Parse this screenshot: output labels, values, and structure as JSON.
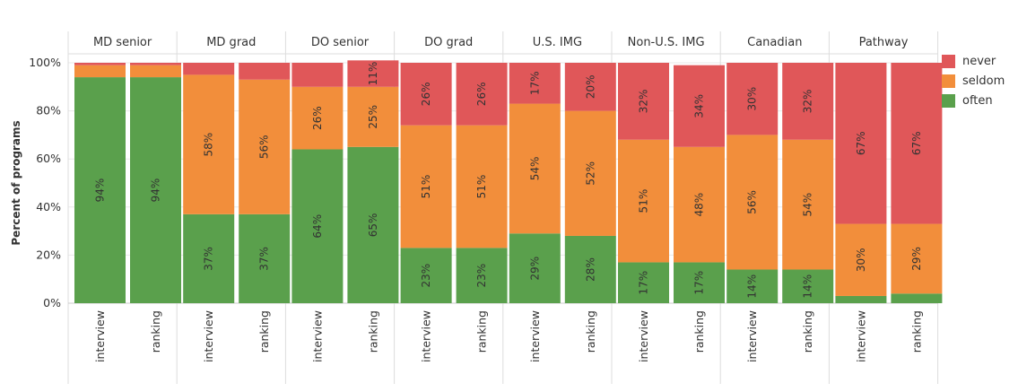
{
  "chart_data": {
    "type": "bar",
    "stacked": true,
    "ylabel": "Percent of programs",
    "ylim": [
      0,
      100
    ],
    "y_ticks": [
      "0%",
      "20%",
      "40%",
      "60%",
      "80%",
      "100%"
    ],
    "grid": true,
    "legend_position": "right",
    "groups": [
      "MD senior",
      "MD grad",
      "DO senior",
      "DO grad",
      "U.S. IMG",
      "Non-U.S. IMG",
      "Canadian",
      "Pathway"
    ],
    "categories": [
      "interview",
      "ranking"
    ],
    "series": [
      {
        "name": "often",
        "color": "#5aa04c",
        "values": [
          [
            94,
            94
          ],
          [
            37,
            37
          ],
          [
            64,
            65
          ],
          [
            23,
            23
          ],
          [
            29,
            28
          ],
          [
            17,
            17
          ],
          [
            14,
            14
          ],
          [
            3,
            4
          ]
        ],
        "labels": [
          [
            "94%",
            "94%"
          ],
          [
            "37%",
            "37%"
          ],
          [
            "64%",
            "65%"
          ],
          [
            "23%",
            "23%"
          ],
          [
            "29%",
            "28%"
          ],
          [
            "17%",
            "17%"
          ],
          [
            "14%",
            "14%"
          ],
          [
            "",
            ""
          ]
        ]
      },
      {
        "name": "seldom",
        "color": "#f28e3b",
        "values": [
          [
            5,
            5
          ],
          [
            58,
            56
          ],
          [
            26,
            25
          ],
          [
            51,
            51
          ],
          [
            54,
            52
          ],
          [
            51,
            48
          ],
          [
            56,
            54
          ],
          [
            30,
            29
          ]
        ],
        "labels": [
          [
            "",
            ""
          ],
          [
            "58%",
            "56%"
          ],
          [
            "26%",
            "25%"
          ],
          [
            "51%",
            "51%"
          ],
          [
            "54%",
            "52%"
          ],
          [
            "51%",
            "48%"
          ],
          [
            "56%",
            "54%"
          ],
          [
            "30%",
            "29%"
          ]
        ]
      },
      {
        "name": "never",
        "color": "#e05759",
        "values": [
          [
            1,
            1
          ],
          [
            5,
            7
          ],
          [
            10,
            11
          ],
          [
            26,
            26
          ],
          [
            17,
            20
          ],
          [
            32,
            34
          ],
          [
            30,
            32
          ],
          [
            67,
            67
          ]
        ],
        "labels": [
          [
            "",
            ""
          ],
          [
            "",
            ""
          ],
          [
            "",
            "11%"
          ],
          [
            "26%",
            "26%"
          ],
          [
            "17%",
            "20%"
          ],
          [
            "32%",
            "34%"
          ],
          [
            "30%",
            "32%"
          ],
          [
            "67%",
            "67%"
          ]
        ]
      }
    ],
    "legend": [
      "never",
      "seldom",
      "often"
    ]
  }
}
